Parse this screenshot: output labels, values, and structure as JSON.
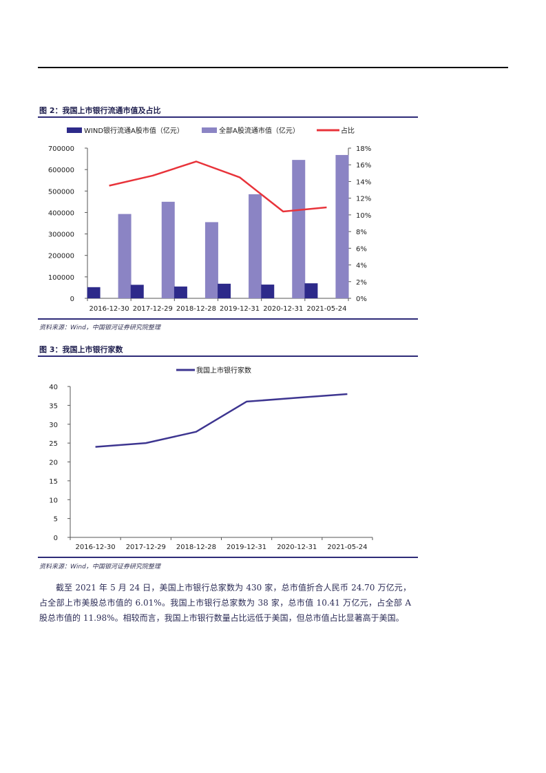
{
  "figure2": {
    "title": "图 2：我国上市银行流通市值及占比",
    "source": "资料来源：Wind，中国银河证券研究院整理"
  },
  "figure3": {
    "title": "图 3：我国上市银行家数",
    "source": "资料来源：Wind，中国银河证券研究院整理"
  },
  "paragraph": "截至 2021 年 5 月 24 日，美国上市银行总家数为 430 家，总市值折合人民币 24.70 万亿元，占全部上市美股总市值的 6.01%。我国上市银行总家数为 38 家，总市值 10.41 万亿元，占全部 A 股总市值的 11.98%。相较而言，我国上市银行数量占比远低于美国，但总市值占比显著高于美国。",
  "chart_data": [
    {
      "type": "bar",
      "categories": [
        "2016-12-30",
        "2017-12-29",
        "2018-12-28",
        "2019-12-31",
        "2020-12-31",
        "2021-05-24"
      ],
      "series": [
        {
          "name": "WIND银行流通A股市值（亿元）",
          "kind": "bar",
          "axis": "left",
          "color": "#2d2a8a",
          "values": [
            52000,
            63000,
            55000,
            68000,
            64000,
            70000
          ]
        },
        {
          "name": "全部A股流通市值（亿元）",
          "kind": "bar",
          "axis": "left",
          "color": "#8b84c4",
          "values": [
            393000,
            450000,
            355000,
            485000,
            645000,
            668000
          ]
        },
        {
          "name": "占比",
          "kind": "line",
          "axis": "right",
          "color": "#e8333a",
          "values": [
            13.5,
            14.7,
            16.4,
            14.5,
            10.4,
            10.9
          ]
        }
      ],
      "y_left": {
        "ylim": [
          0,
          700000
        ],
        "ticks": [
          "0",
          "100000",
          "200000",
          "300000",
          "400000",
          "500000",
          "600000",
          "700000"
        ]
      },
      "y_right": {
        "ylim": [
          0,
          18
        ],
        "ticks": [
          "0%",
          "2%",
          "4%",
          "6%",
          "8%",
          "10%",
          "12%",
          "14%",
          "16%",
          "18%"
        ]
      },
      "legend": "top"
    },
    {
      "type": "line",
      "categories": [
        "2016-12-30",
        "2017-12-29",
        "2018-12-28",
        "2019-12-31",
        "2020-12-31",
        "2021-05-24"
      ],
      "series": [
        {
          "name": "我国上市银行家数",
          "color": "#3d3590",
          "values": [
            24,
            25,
            28,
            36,
            37,
            38
          ]
        }
      ],
      "ylim": [
        0,
        40
      ],
      "y_ticks": [
        "0",
        "5",
        "10",
        "15",
        "20",
        "25",
        "30",
        "35",
        "40"
      ],
      "legend": "top"
    }
  ]
}
